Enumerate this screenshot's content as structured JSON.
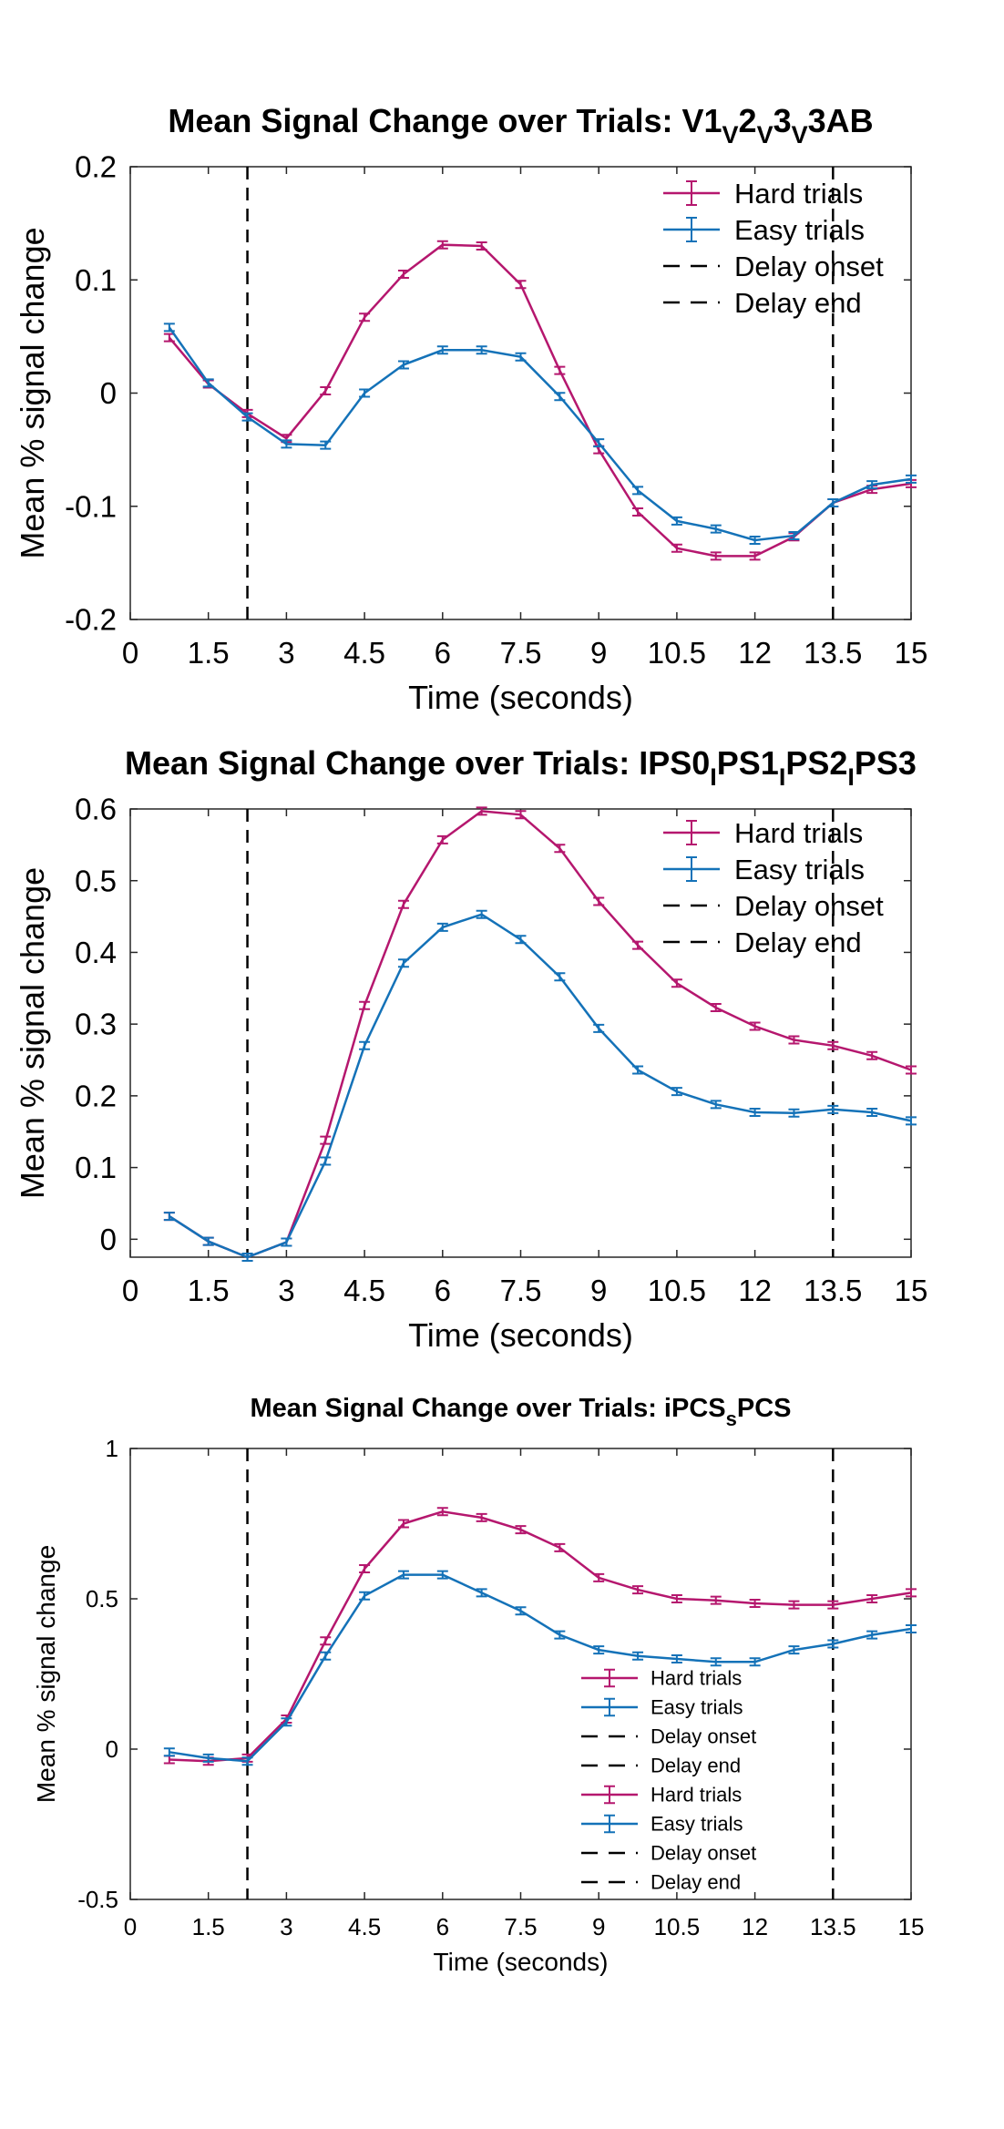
{
  "colors": {
    "hard": "#B5176E",
    "easy": "#1472B8",
    "marker": "#000000",
    "axes": "#262626"
  },
  "x_ticks": [
    "0",
    "1.5",
    "3",
    "4.5",
    "6",
    "7.5",
    "9",
    "10.5",
    "12",
    "13.5",
    "15"
  ],
  "delay_lines_x": [
    2.25,
    13.5
  ],
  "chart_data": [
    {
      "type": "line",
      "title_main": "Mean Signal Change over Trials: V1",
      "title_subs": [
        {
          "sub": "V",
          "after": "2"
        },
        {
          "sub": "V",
          "after": "3"
        },
        {
          "sub": "V",
          "after": "3AB"
        }
      ],
      "xlabel": "Time (seconds)",
      "ylabel": "Mean % signal change",
      "xlim": [
        0,
        15
      ],
      "ylim": [
        -0.2,
        0.2
      ],
      "yticks": [
        -0.2,
        -0.1,
        0,
        0.1,
        0.2
      ],
      "ytick_labels": [
        "-0.2",
        "-0.1",
        "0",
        "0.1",
        "0.2"
      ],
      "x": [
        0.75,
        1.5,
        2.25,
        3.0,
        3.75,
        4.5,
        5.25,
        6.0,
        6.75,
        7.5,
        8.25,
        9.0,
        9.75,
        10.5,
        11.25,
        12.0,
        12.75,
        13.5,
        14.25,
        15.0
      ],
      "series": [
        {
          "name": "Hard trials",
          "values": [
            0.049,
            0.008,
            -0.018,
            -0.04,
            0.002,
            0.067,
            0.105,
            0.131,
            0.13,
            0.096,
            0.02,
            -0.05,
            -0.105,
            -0.137,
            -0.144,
            -0.144,
            -0.127,
            -0.097,
            -0.085,
            -0.08
          ]
        },
        {
          "name": "Easy trials",
          "values": [
            0.058,
            0.009,
            -0.021,
            -0.045,
            -0.046,
            0.0,
            0.025,
            0.038,
            0.038,
            0.032,
            -0.003,
            -0.044,
            -0.086,
            -0.113,
            -0.12,
            -0.13,
            -0.126,
            -0.097,
            -0.081,
            -0.076
          ]
        }
      ],
      "legend": [
        "Hard trials",
        "Easy trials",
        "Delay onset",
        "Delay end"
      ],
      "legend_position": "top-right"
    },
    {
      "type": "line",
      "title_main": "Mean Signal Change over Trials: IPS0",
      "title_subs": [
        {
          "sub": "I",
          "after": "PS1"
        },
        {
          "sub": "I",
          "after": "PS2"
        },
        {
          "sub": "I",
          "after": "PS3"
        }
      ],
      "xlabel": "Time (seconds)",
      "ylabel": "Mean % signal change",
      "xlim": [
        0,
        15
      ],
      "ylim": [
        -0.025,
        0.6
      ],
      "yticks": [
        0,
        0.1,
        0.2,
        0.3,
        0.4,
        0.5,
        0.6
      ],
      "ytick_labels": [
        "0",
        "0.1",
        "0.2",
        "0.3",
        "0.4",
        "0.5",
        "0.6"
      ],
      "x": [
        0.75,
        1.5,
        2.25,
        3.0,
        3.75,
        4.5,
        5.25,
        6.0,
        6.75,
        7.5,
        8.25,
        9.0,
        9.75,
        10.5,
        11.25,
        12.0,
        12.75,
        13.5,
        14.25,
        15.0
      ],
      "series": [
        {
          "name": "Hard trials",
          "values": [
            0.032,
            -0.003,
            -0.025,
            -0.004,
            0.138,
            0.326,
            0.467,
            0.557,
            0.597,
            0.592,
            0.545,
            0.471,
            0.41,
            0.357,
            0.323,
            0.297,
            0.278,
            0.27,
            0.256,
            0.236
          ]
        },
        {
          "name": "Easy trials",
          "values": [
            0.032,
            -0.003,
            -0.025,
            -0.004,
            0.109,
            0.27,
            0.385,
            0.435,
            0.453,
            0.418,
            0.366,
            0.294,
            0.236,
            0.206,
            0.188,
            0.177,
            0.176,
            0.181,
            0.177,
            0.165
          ]
        }
      ],
      "legend": [
        "Hard trials",
        "Easy trials",
        "Delay onset",
        "Delay end"
      ],
      "legend_position": "top-right"
    },
    {
      "type": "line",
      "title_main": "Mean Signal Change over Trials: iPCS",
      "title_subs": [
        {
          "sub": "s",
          "after": "PCS"
        }
      ],
      "xlabel": "Time (seconds)",
      "ylabel": "Mean % signal change",
      "xlim": [
        0,
        15
      ],
      "ylim": [
        -0.5,
        1
      ],
      "yticks": [
        -0.5,
        0,
        0.5,
        1
      ],
      "ytick_labels": [
        "-0.5",
        "0",
        "0.5",
        "1"
      ],
      "x": [
        0.75,
        1.5,
        2.25,
        3.0,
        3.75,
        4.5,
        5.25,
        6.0,
        6.75,
        7.5,
        8.25,
        9.0,
        9.75,
        10.5,
        11.25,
        12.0,
        12.75,
        13.5,
        14.25,
        15.0
      ],
      "series": [
        {
          "name": "Hard trials",
          "values": [
            -0.035,
            -0.04,
            -0.03,
            0.1,
            0.36,
            0.6,
            0.75,
            0.79,
            0.77,
            0.73,
            0.67,
            0.57,
            0.53,
            0.5,
            0.495,
            0.485,
            0.48,
            0.48,
            0.5,
            0.52
          ]
        },
        {
          "name": "Easy trials",
          "values": [
            -0.01,
            -0.03,
            -0.04,
            0.09,
            0.31,
            0.51,
            0.58,
            0.58,
            0.52,
            0.46,
            0.38,
            0.33,
            0.31,
            0.3,
            0.29,
            0.29,
            0.33,
            0.35,
            0.38,
            0.4
          ]
        }
      ],
      "legend": [
        "Hard trials",
        "Easy trials",
        "Delay onset",
        "Delay end",
        "Hard trials",
        "Easy trials",
        "Delay onset",
        "Delay end"
      ],
      "legend_position": "lower-center"
    }
  ]
}
